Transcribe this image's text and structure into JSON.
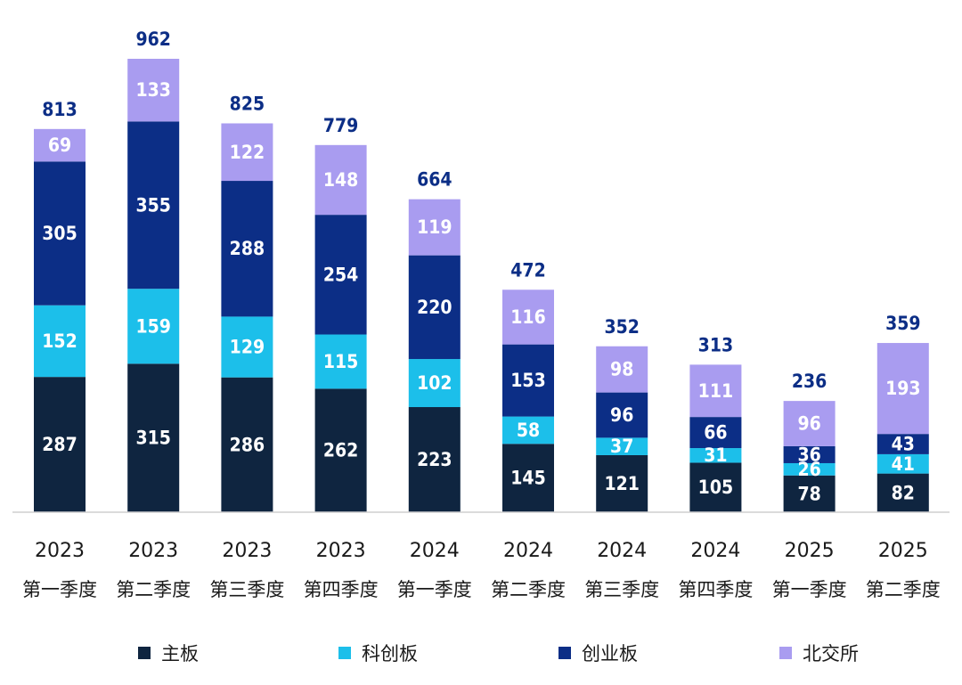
{
  "chart_data": {
    "type": "bar",
    "stacked": true,
    "categories": [
      {
        "year": "2023",
        "quarter": "第一季度"
      },
      {
        "year": "2023",
        "quarter": "第二季度"
      },
      {
        "year": "2023",
        "quarter": "第三季度"
      },
      {
        "year": "2023",
        "quarter": "第四季度"
      },
      {
        "year": "2024",
        "quarter": "第一季度"
      },
      {
        "year": "2024",
        "quarter": "第二季度"
      },
      {
        "year": "2024",
        "quarter": "第三季度"
      },
      {
        "year": "2024",
        "quarter": "第四季度"
      },
      {
        "year": "2025",
        "quarter": "第一季度"
      },
      {
        "year": "2025",
        "quarter": "第二季度"
      }
    ],
    "series": [
      {
        "name": "主板",
        "color": "#0f2540",
        "values": [
          287,
          315,
          286,
          262,
          223,
          145,
          121,
          105,
          78,
          82
        ]
      },
      {
        "name": "科创板",
        "color": "#1cbfea",
        "values": [
          152,
          159,
          129,
          115,
          102,
          58,
          37,
          31,
          26,
          41
        ]
      },
      {
        "name": "创业板",
        "color": "#0c2e86",
        "values": [
          305,
          355,
          288,
          254,
          220,
          153,
          96,
          66,
          36,
          43
        ]
      },
      {
        "name": "北交所",
        "color": "#a99cf0",
        "values": [
          69,
          133,
          122,
          148,
          119,
          116,
          98,
          111,
          96,
          193
        ]
      }
    ],
    "totals": [
      813,
      962,
      825,
      779,
      664,
      472,
      352,
      313,
      236,
      359
    ],
    "total_label_color": "#0c2e86",
    "ylim": [
      0,
      962
    ],
    "grid": false,
    "legend_position": "bottom"
  }
}
